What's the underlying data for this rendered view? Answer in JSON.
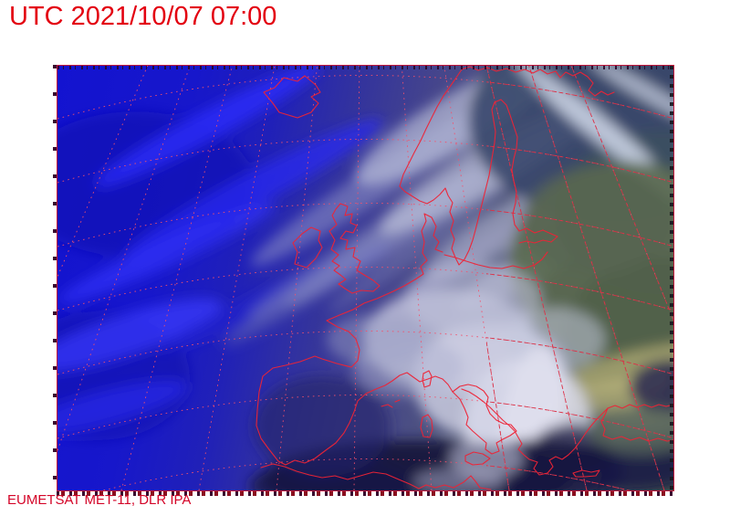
{
  "header": {
    "timestamp": "UTC 2021/10/07 07:00",
    "color": "#e30010"
  },
  "footer": {
    "credit": "EUMETSAT MET-11, DLR IPA",
    "color": "#d40528"
  },
  "satellite_view": {
    "frame_border_color": "#c2183c",
    "overlay": {
      "coastline_color": "#ee2336",
      "graticule_dotted_color": "#f4506b",
      "graticule_solid_color": "#d92f44",
      "tick_color": "#3a0a2e"
    },
    "scene_palette": {
      "atlantic_night_blue": "#1717cb",
      "night_cloud_blue": "#2e2eff",
      "twilight_blue": "#34349c",
      "north_sea_slate": "#4e537f",
      "daylit_sea_slate": "#3c4f60",
      "daylit_land_olive": "#5b6a50",
      "steppe_khaki": "#b3ad76",
      "cloud_white": "#d8d9ea",
      "mediterranean_navy": "#14143c"
    }
  }
}
